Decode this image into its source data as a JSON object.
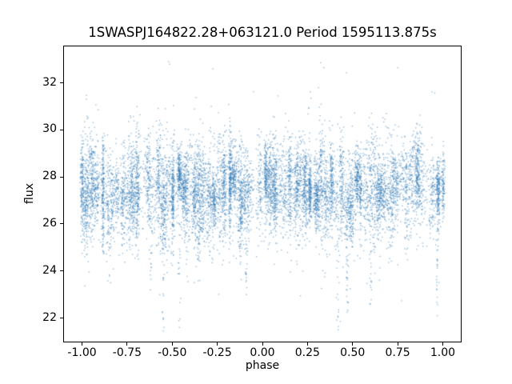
{
  "figure": {
    "title": "1SWASPJ164822.28+063121.0 Period 1595113.875s",
    "xlabel": "phase",
    "ylabel": "flux"
  },
  "chart_data": {
    "type": "scatter",
    "title": "1SWASPJ164822.28+063121.0 Period 1595113.875s",
    "xlabel": "phase",
    "ylabel": "flux",
    "xlim": [
      -1.1,
      1.1
    ],
    "ylim": [
      21.0,
      33.55
    ],
    "xticks": [
      -1.0,
      -0.75,
      -0.5,
      -0.25,
      0.0,
      0.25,
      0.5,
      0.75,
      1.0
    ],
    "xtick_labels": [
      "-1.00",
      "-0.75",
      "-0.50",
      "-0.25",
      "0.00",
      "0.25",
      "0.50",
      "0.75",
      "1.00"
    ],
    "yticks": [
      22,
      24,
      26,
      28,
      30,
      32
    ],
    "ytick_labels": [
      "22",
      "24",
      "26",
      "28",
      "30",
      "32"
    ],
    "grid": false,
    "legend": null,
    "marker_color": "#2f7ab5",
    "marker_alpha": 0.5,
    "marker_px": 1.4,
    "n_points": 9200,
    "n_columns": 72,
    "bg_fraction": 0.18,
    "seed": 11,
    "band": {
      "y_mean": 27.35,
      "y_std_min": 0.5,
      "y_std_max": 1.35
    },
    "y_range_data": [
      21.35,
      33.1
    ],
    "deep_columns": [
      {
        "x": -0.55,
        "ymin": 21.45
      },
      {
        "x": -0.46,
        "ymin": 21.6
      },
      {
        "x": -0.62,
        "ymin": 23.2
      },
      {
        "x": -0.09,
        "ymin": 23.0
      },
      {
        "x": 0.42,
        "ymin": 21.5
      },
      {
        "x": 0.47,
        "ymin": 22.25
      },
      {
        "x": 0.6,
        "ymin": 22.6
      },
      {
        "x": 0.97,
        "ymin": 22.1
      }
    ],
    "top_outliers": [
      [
        -0.52,
        33.0
      ],
      [
        0.33,
        32.9
      ],
      [
        -0.28,
        32.6
      ],
      [
        0.47,
        32.5
      ],
      [
        0.75,
        32.8
      ],
      [
        -0.98,
        31.55
      ],
      [
        0.95,
        31.9
      ],
      [
        -0.05,
        31.8
      ],
      [
        0.08,
        31.7
      ]
    ],
    "description": "Phase-folded SuperWASP light curve: dense vertical streaks of photometric points centered near flux 27.4, envelope roughly 24-31, with sparse excursions down to ~21.5 and up to ~33."
  }
}
